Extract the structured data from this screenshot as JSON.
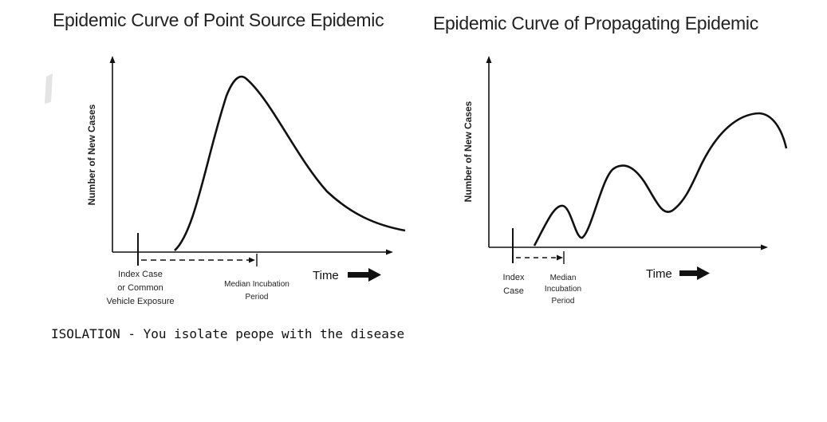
{
  "left": {
    "title": "Epidemic Curve of Point Source Epidemic",
    "ylabel": "Number of New Cases",
    "exposure_label": [
      "Index Case",
      "or Common",
      "Vehicle Exposure"
    ],
    "incubation_label": [
      "Median Incubation",
      "Period"
    ],
    "time_label": "Time"
  },
  "right": {
    "title": "Epidemic Curve of Propagating Epidemic",
    "ylabel": "Number of New Cases",
    "index_label": [
      "Index",
      "Case"
    ],
    "incubation_label": [
      "Median",
      "Incubation",
      "Period"
    ],
    "time_label": "Time"
  },
  "note": "ISOLATION - You isolate peope with the disease"
}
